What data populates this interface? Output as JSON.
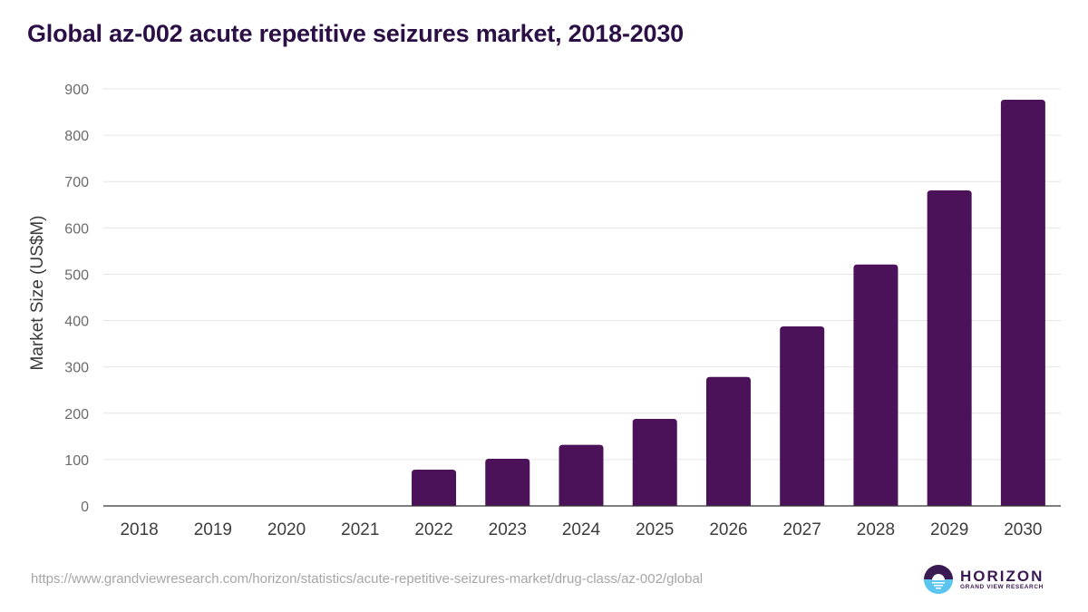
{
  "header": {
    "title": "Global az-002 acute repetitive seizures market, 2018-2030"
  },
  "footer": {
    "source_url": "https://www.grandviewresearch.com/horizon/statistics/acute-repetitive-seizures-market/drug-class/az-002/global",
    "logo_name": "HORIZON",
    "logo_subtitle": "GRAND VIEW RESEARCH"
  },
  "colors": {
    "bar": "#4b1259",
    "title": "#2b0f45",
    "grid": "#e6e6e6",
    "axis": "#333333",
    "logo_top": "#3a1a52",
    "logo_bottom": "#5bc4ef"
  },
  "chart_data": {
    "type": "bar",
    "title": "Global az-002 acute repetitive seizures market, 2018-2030",
    "xlabel": "",
    "ylabel": "Market Size (US$M)",
    "categories": [
      "2018",
      "2019",
      "2020",
      "2021",
      "2022",
      "2023",
      "2024",
      "2025",
      "2026",
      "2027",
      "2028",
      "2029",
      "2030"
    ],
    "values": [
      0,
      0,
      0,
      0,
      78.3,
      101.7,
      131.7,
      187.8,
      278.4,
      387.4,
      521.0,
      680.9,
      876.5
    ],
    "ylim": [
      0,
      900
    ],
    "yticks": [
      "0",
      "100",
      "200",
      "300",
      "400",
      "500",
      "600",
      "700",
      "800",
      "900"
    ],
    "grid": true,
    "legend": "none"
  }
}
